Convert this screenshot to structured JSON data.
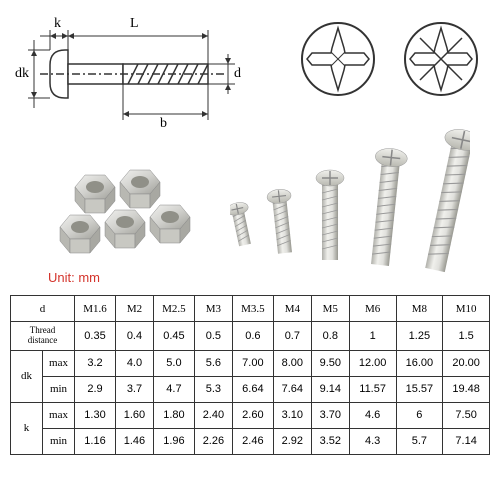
{
  "unit_label": "Unit: mm",
  "unit_color": "#d4342c",
  "schematic": {
    "labels": {
      "k": "k",
      "L": "L",
      "dk": "dk",
      "b": "b",
      "d": "d"
    },
    "stroke": "#333333",
    "stroke_width": 1.5
  },
  "drive_icons": {
    "types": [
      "phillips",
      "pozidriv"
    ],
    "stroke": "#333333"
  },
  "hardware": {
    "nut_count": 5,
    "screw_count": 5,
    "metal_light": "#e8e8e6",
    "metal_mid": "#c8c8c4",
    "metal_dark": "#9a9a94"
  },
  "table": {
    "border_color": "#333333",
    "font_size": 11,
    "columns": [
      "d",
      "M1.6",
      "M2",
      "M2.5",
      "M3",
      "M3.5",
      "M4",
      "M5",
      "M6",
      "M8",
      "M10"
    ],
    "rows": [
      {
        "group": null,
        "label": "Thread distance",
        "values": [
          "0.35",
          "0.4",
          "0.45",
          "0.5",
          "0.6",
          "0.7",
          "0.8",
          "1",
          "1.25",
          "1.5"
        ]
      },
      {
        "group": "dk",
        "label": "max",
        "values": [
          "3.2",
          "4.0",
          "5.0",
          "5.6",
          "7.00",
          "8.00",
          "9.50",
          "12.00",
          "16.00",
          "20.00"
        ]
      },
      {
        "group": "dk",
        "label": "min",
        "values": [
          "2.9",
          "3.7",
          "4.7",
          "5.3",
          "6.64",
          "7.64",
          "9.14",
          "11.57",
          "15.57",
          "19.48"
        ]
      },
      {
        "group": "k",
        "label": "max",
        "values": [
          "1.30",
          "1.60",
          "1.80",
          "2.40",
          "2.60",
          "3.10",
          "3.70",
          "4.6",
          "6",
          "7.50"
        ]
      },
      {
        "group": "k",
        "label": "min",
        "values": [
          "1.16",
          "1.46",
          "1.96",
          "2.26",
          "2.46",
          "2.92",
          "3.52",
          "4.3",
          "5.7",
          "7.14"
        ]
      }
    ]
  }
}
